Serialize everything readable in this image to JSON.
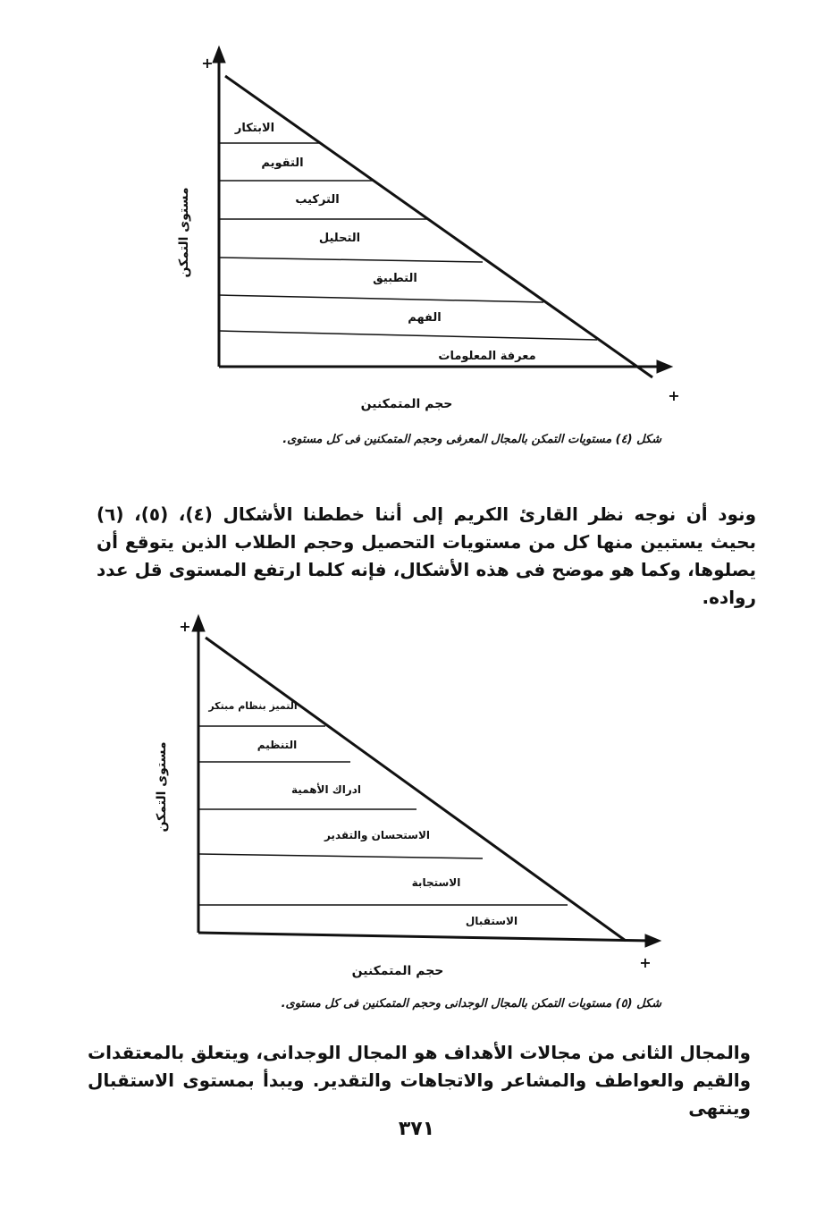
{
  "figure4": {
    "y_axis_label": "مستوى التمكن",
    "x_axis_label": "حجم المتمكنين",
    "plus": "+",
    "levels": [
      "الابتكار",
      "التقويم",
      "التركيب",
      "التحليل",
      "التطبيق",
      "الفهم",
      "معرفة المعلومات"
    ],
    "caption": "شكل (٤) مستويات التمكن بالمجال المعرفى وحجم المتمكنين فى كل مستوى."
  },
  "paragraph1": "ونود أن نوجه نظر القارئ الكريم إلى أننا خططنا الأشكال (٤)، (٥)، (٦) بحيث يستبين منها كل من مستويات التحصيل وحجم الطلاب الذين يتوقع أن يصلوها، وكما هو موضح فى هذه الأشكال، فإنه كلما ارتفع المستوى قل عدد رواده.",
  "figure5": {
    "y_axis_label": "مستوى التمكن",
    "x_axis_label": "حجم المتمكنين",
    "plus": "+",
    "levels": [
      "التميز بنظام مبتكر",
      "التنظيم",
      "ادراك الأهمية",
      "الاستحسان والتقدير",
      "الاستجابة",
      "الاستقبال"
    ],
    "caption": "شكل (٥) مستويات التمكن بالمجال الوجدانى وحجم المتمكنين فى كل مستوى."
  },
  "paragraph2": "والمجال الثانى من مجالات الأهداف هو المجال الوجدانى، ويتعلق بالمعتقدات والقيم والعواطف والمشاعر والاتجاهات والتقدير. ويبدأ بمستوى الاستقبال وينتهى",
  "page_number": "٣٧١"
}
